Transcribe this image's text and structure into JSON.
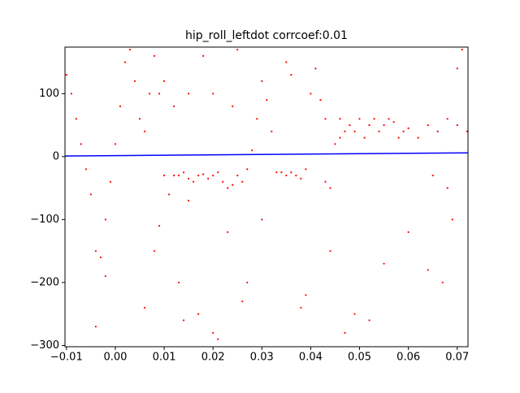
{
  "chart_data": {
    "type": "scatter",
    "title": "hip_roll_leftdot corrcoef:0.01",
    "xlim": [
      -0.0103,
      0.0722
    ],
    "ylim": [
      -302,
      174
    ],
    "xticks": [
      {
        "value": -0.01,
        "label": "−0.01"
      },
      {
        "value": 0,
        "label": "0.00"
      },
      {
        "value": 0.01,
        "label": "0.01"
      },
      {
        "value": 0.02,
        "label": "0.02"
      },
      {
        "value": 0.03,
        "label": "0.03"
      },
      {
        "value": 0.04,
        "label": "0.04"
      },
      {
        "value": 0.05,
        "label": "0.05"
      },
      {
        "value": 0.06,
        "label": "0.06"
      },
      {
        "value": 0.07,
        "label": "0.07"
      }
    ],
    "yticks": [
      {
        "value": -300,
        "label": "−300"
      },
      {
        "value": -200,
        "label": "−200"
      },
      {
        "value": -100,
        "label": "−100"
      },
      0,
      100
    ],
    "series": [
      {
        "color": "#ff0000",
        "x": [
          -0.01,
          -0.009,
          -0.008,
          -0.007,
          -0.006,
          -0.005,
          -0.004,
          -0.004,
          -0.003,
          -0.002,
          -0.001,
          0.0,
          0.001,
          0.002,
          0.003,
          0.004,
          0.005,
          0.006,
          0.007,
          0.008,
          0.009,
          0.01,
          0.011,
          0.012,
          0.013,
          0.014,
          0.015,
          0.016,
          0.017,
          0.018,
          0.019,
          0.02,
          0.021,
          0.022,
          0.023,
          0.024,
          0.025,
          0.026,
          0.027,
          0.028,
          0.029,
          0.03,
          0.031,
          0.032,
          0.033,
          0.034,
          0.035,
          0.036,
          0.037,
          0.038,
          0.039,
          0.04,
          0.041,
          0.042,
          0.043,
          0.044,
          0.045,
          0.046,
          0.047,
          0.048,
          0.049,
          0.05,
          0.051,
          0.052,
          0.053,
          0.054,
          0.055,
          0.056,
          0.057,
          0.058,
          0.059,
          0.06,
          0.062,
          0.064,
          0.066,
          0.068,
          0.07,
          0.072,
          0.013,
          0.014,
          0.017,
          0.02,
          0.021,
          0.026,
          0.027,
          0.038,
          0.039,
          0.047,
          0.049,
          0.052,
          0.044,
          0.03,
          0.006,
          -0.002,
          0.055,
          0.06,
          0.064,
          0.067,
          0.069,
          0.07,
          0.071,
          0.068,
          0.065,
          0.035,
          0.036,
          0.025,
          0.018,
          0.01,
          0.012,
          0.015,
          0.02,
          0.024,
          0.043,
          0.046,
          0.008,
          0.009,
          0.015,
          0.023
        ],
        "y": [
          130,
          100,
          60,
          20,
          -20,
          -60,
          -150,
          -270,
          -160,
          -100,
          -40,
          20,
          80,
          150,
          170,
          120,
          60,
          40,
          100,
          160,
          100,
          -30,
          -60,
          -30,
          -30,
          -25,
          -35,
          -40,
          -30,
          -28,
          -35,
          -30,
          -25,
          -40,
          -50,
          -45,
          -30,
          -40,
          -20,
          10,
          60,
          120,
          90,
          40,
          -25,
          -25,
          -30,
          -25,
          -30,
          -35,
          -20,
          100,
          140,
          90,
          -40,
          -50,
          20,
          30,
          40,
          50,
          40,
          60,
          30,
          50,
          60,
          40,
          50,
          60,
          55,
          30,
          40,
          45,
          30,
          50,
          40,
          60,
          50,
          40,
          -200,
          -260,
          -250,
          -280,
          -290,
          -230,
          -200,
          -240,
          -220,
          -280,
          -250,
          -260,
          -150,
          -100,
          -240,
          -190,
          -170,
          -120,
          -180,
          -200,
          -100,
          140,
          170,
          -50,
          -30,
          150,
          130,
          170,
          160,
          120,
          80,
          100,
          100,
          80,
          60,
          60,
          -150,
          -110,
          -70,
          -120
        ]
      }
    ],
    "fit_line": {
      "color": "#0000ff",
      "x": [
        -0.0103,
        0.0722
      ],
      "y": [
        1,
        6
      ]
    }
  }
}
